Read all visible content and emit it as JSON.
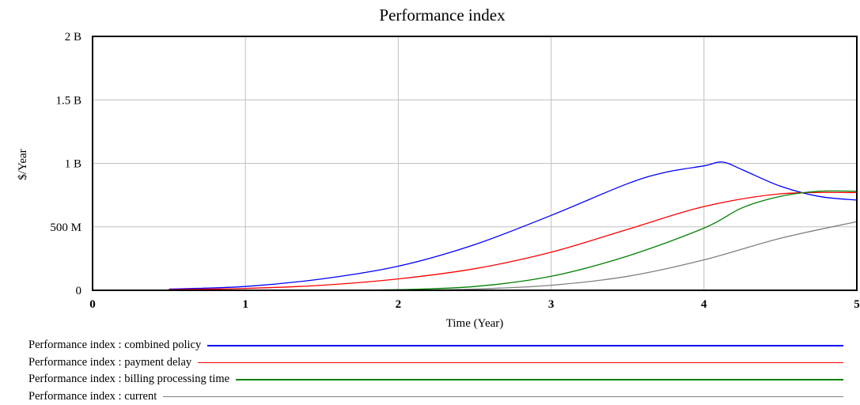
{
  "chart_data": {
    "type": "line",
    "title": "Performance index",
    "xlabel": "Time (Year)",
    "ylabel": "$/Year",
    "xlim": [
      0,
      5
    ],
    "ylim": [
      0,
      2000000000
    ],
    "x_ticks": [
      {
        "value": 0,
        "label": "0"
      },
      {
        "value": 1,
        "label": "1"
      },
      {
        "value": 2,
        "label": "2"
      },
      {
        "value": 3,
        "label": "3"
      },
      {
        "value": 4,
        "label": "4"
      },
      {
        "value": 5,
        "label": "5"
      }
    ],
    "y_ticks": [
      {
        "value": 0,
        "label": "0"
      },
      {
        "value": 500000000,
        "label": "500 M"
      },
      {
        "value": 1000000000,
        "label": "1 B"
      },
      {
        "value": 1500000000,
        "label": "1.5 B"
      },
      {
        "value": 2000000000,
        "label": "2 B"
      }
    ],
    "grid": true,
    "legend_position": "bottom",
    "series": [
      {
        "name": "Performance index : combined policy",
        "color": "#0000ff",
        "x": [
          0.5,
          1,
          1.5,
          2,
          2.5,
          3,
          3.5,
          3.75,
          4,
          4.12,
          4.25,
          4.5,
          4.75,
          5
        ],
        "y": [
          10000000,
          30000000,
          90000000,
          190000000,
          360000000,
          590000000,
          840000000,
          930000000,
          980000000,
          1010000000,
          950000000,
          820000000,
          740000000,
          710000000
        ]
      },
      {
        "name": "Performance index : payment delay",
        "color": "#ff0000",
        "x": [
          0.5,
          1,
          1.5,
          2,
          2.5,
          3,
          3.5,
          4,
          4.5,
          5
        ],
        "y": [
          5000000,
          15000000,
          40000000,
          90000000,
          170000000,
          300000000,
          480000000,
          660000000,
          760000000,
          770000000
        ]
      },
      {
        "name": "Performance index : billing processing time",
        "color": "#008000",
        "x": [
          0.5,
          1,
          1.5,
          2,
          2.5,
          3,
          3.5,
          4,
          4.25,
          4.5,
          4.75,
          5
        ],
        "y": [
          0,
          0,
          0,
          5000000,
          30000000,
          110000000,
          270000000,
          490000000,
          650000000,
          740000000,
          780000000,
          780000000
        ]
      },
      {
        "name": "Performance index : current",
        "color": "#808080",
        "x": [
          0.5,
          1,
          1.5,
          2,
          2.5,
          3,
          3.5,
          4,
          4.5,
          5
        ],
        "y": [
          0,
          0,
          0,
          0,
          10000000,
          40000000,
          110000000,
          240000000,
          410000000,
          540000000
        ]
      }
    ]
  }
}
